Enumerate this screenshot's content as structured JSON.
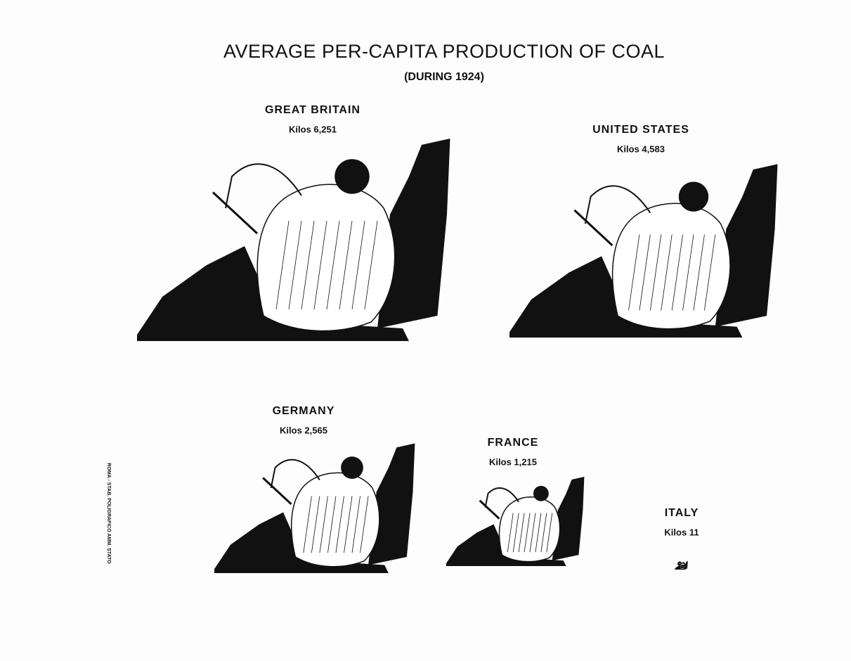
{
  "chart_data": {
    "type": "pictogram",
    "title": "AVERAGE PER-CAPITA PRODUCTION OF COAL",
    "subtitle": "(DURING 1924)",
    "categories": [
      "GREAT BRITAIN",
      "UNITED STATES",
      "GERMANY",
      "FRANCE",
      "ITALY"
    ],
    "values": [
      6251,
      4583,
      2565,
      1215,
      11
    ],
    "value_labels": [
      "Kilos 6,251",
      "Kilos 4,583",
      "Kilos 2,565",
      "Kilos 1,215",
      "Kilos 11"
    ],
    "color": "#111111",
    "credit": "ROMA - STAB. POLIGRAFICO AMM. STATO"
  }
}
